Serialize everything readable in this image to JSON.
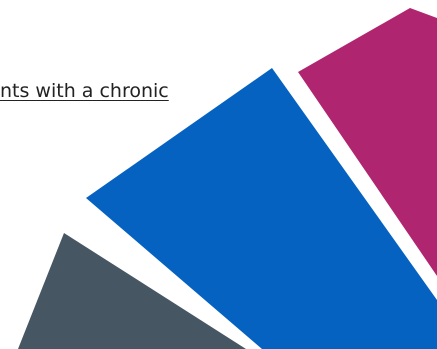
{
  "content": {
    "link_text": "nts with a chronic"
  },
  "decor": {
    "colors": {
      "magenta": "#B0256F",
      "blue": "#0562C0",
      "slate": "#465662",
      "background": "#FFFFFF"
    }
  }
}
